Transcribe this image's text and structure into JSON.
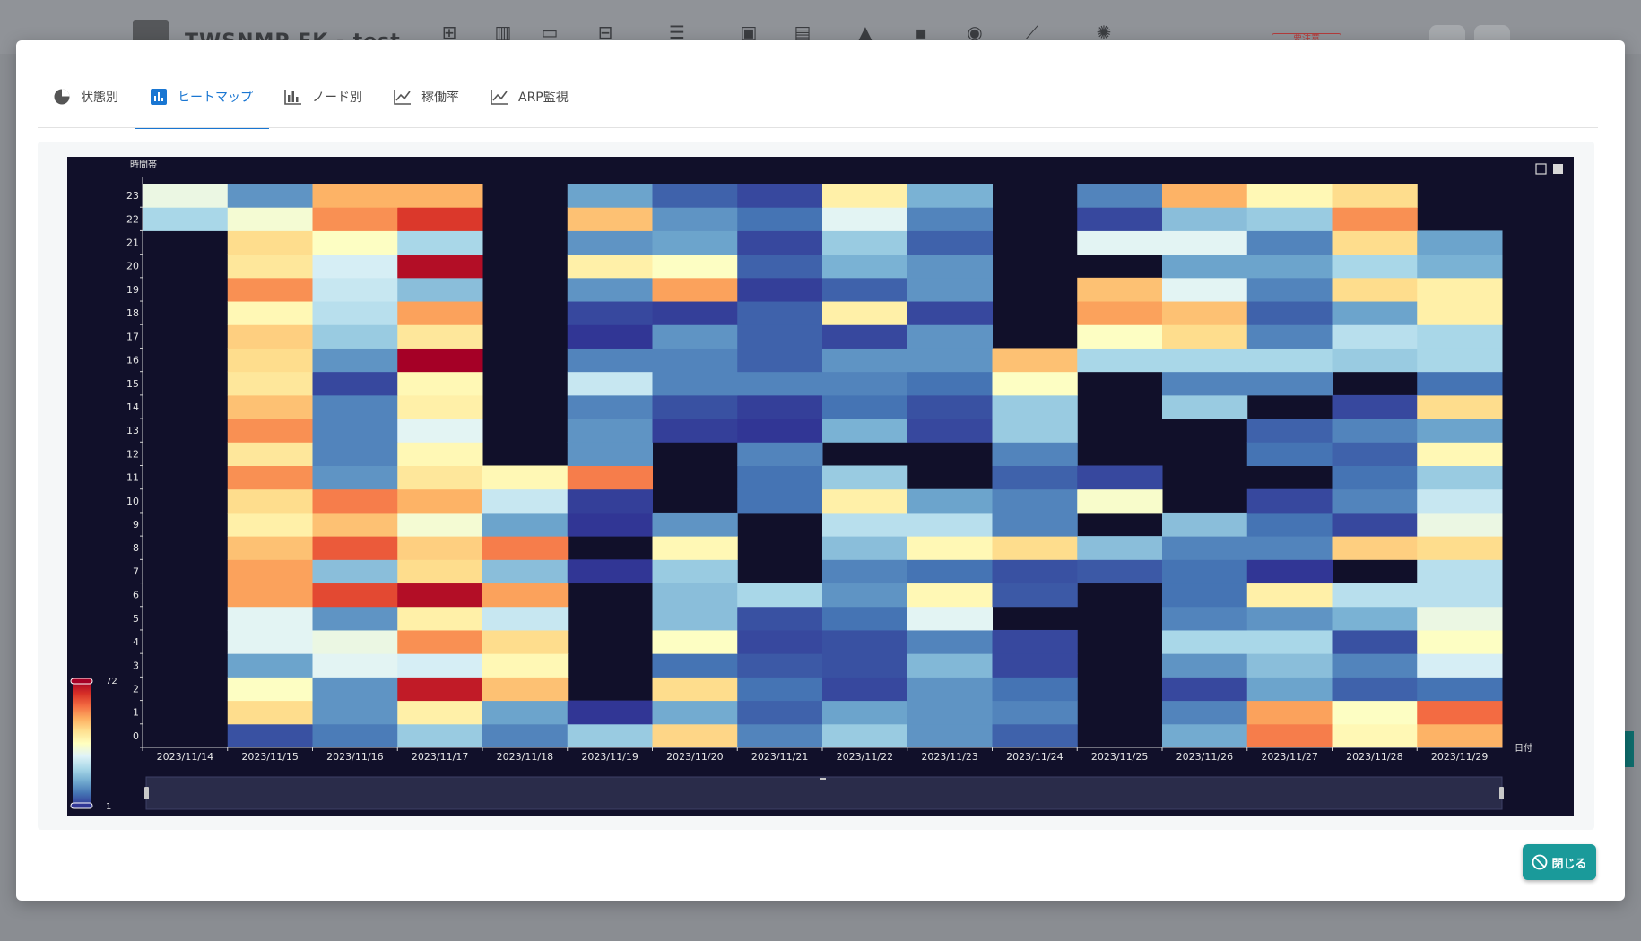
{
  "background": {
    "app_title": "TWSNMP FK - test",
    "badge": "要注意",
    "icons": [
      "network-icon",
      "map-icon",
      "monitor-icon",
      "nodes-icon",
      "checklist-icon",
      "calendar-check-icon",
      "calendar-icon",
      "warning-icon",
      "task-icon",
      "palette-icon",
      "chart-line-icon",
      "gear-icon"
    ]
  },
  "tabs": [
    {
      "label": "状態別",
      "icon": "pie-chart-icon",
      "active": false
    },
    {
      "label": "ヒートマップ",
      "icon": "bar-chart-box-icon",
      "active": true
    },
    {
      "label": "ノード別",
      "icon": "stacked-bar-icon",
      "active": false
    },
    {
      "label": "稼働率",
      "icon": "line-chart-icon",
      "active": false
    },
    {
      "label": "ARP監視",
      "icon": "line-chart-icon",
      "active": false
    }
  ],
  "close_button": {
    "label": "閉じる",
    "icon": "block-icon"
  },
  "chart_data": {
    "type": "heatmap",
    "ylabel": "時間帯",
    "xlabel": "日付",
    "x": [
      "2023/11/14",
      "2023/11/15",
      "2023/11/16",
      "2023/11/17",
      "2023/11/18",
      "2023/11/19",
      "2023/11/20",
      "2023/11/21",
      "2023/11/22",
      "2023/11/23",
      "2023/11/24",
      "2023/11/25",
      "2023/11/26",
      "2023/11/27",
      "2023/11/28",
      "2023/11/29"
    ],
    "y": [
      "0",
      "1",
      "2",
      "3",
      "4",
      "5",
      "6",
      "7",
      "8",
      "9",
      "10",
      "11",
      "12",
      "13",
      "14",
      "15",
      "16",
      "17",
      "18",
      "19",
      "20",
      "21",
      "22",
      "23"
    ],
    "visual_map": {
      "min": 1,
      "max": 72,
      "min_label": "1",
      "max_label": "72"
    },
    "colors": [
      "#313695",
      "#4575b4",
      "#74add1",
      "#abd9e9",
      "#e0f3f8",
      "#ffffbf",
      "#fee090",
      "#fdae61",
      "#f46d43",
      "#d73027",
      "#a50026"
    ],
    "background": "#11102a",
    "values": [
      [
        null,
        4,
        9,
        20,
        10,
        20,
        45,
        10,
        20,
        12,
        6,
        null,
        15,
        56,
        38,
        50
      ],
      [
        null,
        44,
        12,
        40,
        14,
        1,
        15,
        6,
        14,
        12,
        10,
        null,
        10,
        52,
        36,
        58
      ],
      [
        null,
        36,
        12,
        68,
        48,
        null,
        44,
        8,
        3,
        12,
        8,
        null,
        3,
        14,
        6,
        8
      ],
      [
        null,
        14,
        30,
        28,
        38,
        null,
        8,
        5,
        4,
        17,
        3,
        null,
        12,
        18,
        10,
        28
      ],
      [
        null,
        30,
        32,
        54,
        44,
        null,
        36,
        3,
        4,
        10,
        3,
        null,
        22,
        22,
        4,
        36
      ],
      [
        null,
        30,
        12,
        40,
        26,
        null,
        18,
        4,
        8,
        30,
        null,
        null,
        10,
        12,
        16,
        32
      ],
      [
        null,
        52,
        62,
        70,
        52,
        null,
        18,
        22,
        12,
        38,
        5,
        null,
        8,
        40,
        24,
        24
      ],
      [
        null,
        52,
        18,
        44,
        18,
        1,
        20,
        null,
        10,
        8,
        4,
        5,
        8,
        1,
        null,
        24
      ],
      [
        null,
        48,
        60,
        46,
        56,
        null,
        38,
        null,
        18,
        38,
        44,
        18,
        10,
        10,
        46,
        44
      ],
      [
        null,
        40,
        48,
        34,
        14,
        1,
        12,
        null,
        24,
        24,
        10,
        null,
        18,
        8,
        3,
        32
      ],
      [
        null,
        44,
        56,
        50,
        26,
        2,
        null,
        8,
        40,
        14,
        10,
        35,
        null,
        3,
        10,
        26
      ],
      [
        null,
        54,
        12,
        42,
        38,
        56,
        null,
        8,
        20,
        null,
        6,
        3,
        null,
        null,
        8,
        20
      ],
      [
        null,
        42,
        10,
        38,
        null,
        12,
        null,
        10,
        null,
        null,
        10,
        null,
        null,
        8,
        6,
        38
      ],
      [
        null,
        54,
        10,
        30,
        null,
        12,
        2,
        1,
        16,
        3,
        20,
        null,
        null,
        6,
        10,
        14
      ],
      [
        null,
        48,
        10,
        40,
        null,
        10,
        4,
        2,
        8,
        4,
        20,
        null,
        20,
        null,
        3,
        44
      ],
      [
        null,
        42,
        3,
        38,
        null,
        26,
        10,
        10,
        10,
        8,
        36,
        null,
        10,
        10,
        null,
        8
      ],
      [
        null,
        44,
        12,
        72,
        null,
        10,
        10,
        6,
        12,
        12,
        48,
        22,
        22,
        22,
        20,
        22
      ],
      [
        null,
        46,
        20,
        42,
        null,
        1,
        12,
        6,
        3,
        12,
        null,
        36,
        44,
        10,
        24,
        22
      ],
      [
        null,
        38,
        24,
        52,
        null,
        3,
        2,
        6,
        40,
        3,
        null,
        52,
        48,
        6,
        14,
        40
      ],
      [
        null,
        54,
        26,
        18,
        null,
        12,
        52,
        2,
        6,
        12,
        null,
        48,
        30,
        10,
        44,
        40
      ],
      [
        null,
        42,
        28,
        70,
        null,
        40,
        36,
        6,
        16,
        12,
        null,
        null,
        14,
        14,
        22,
        16
      ],
      [
        null,
        44,
        36,
        22,
        null,
        12,
        14,
        3,
        20,
        6,
        null,
        30,
        30,
        10,
        44,
        14
      ],
      [
        22,
        34,
        54,
        64,
        null,
        48,
        12,
        8,
        30,
        10,
        null,
        3,
        18,
        20,
        54,
        null
      ],
      [
        32,
        12,
        50,
        50,
        null,
        14,
        6,
        3,
        40,
        16,
        null,
        10,
        50,
        38,
        44,
        null
      ]
    ]
  }
}
